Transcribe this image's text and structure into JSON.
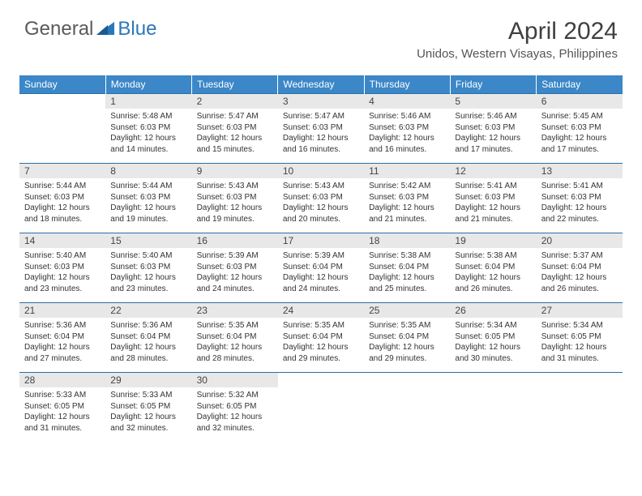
{
  "logo": {
    "text_general": "General",
    "text_blue": "Blue",
    "accent_color": "#2a77bb",
    "text_color": "#5a5a5a"
  },
  "title": "April 2024",
  "location": "Unidos, Western Visayas, Philippines",
  "colors": {
    "header_bg": "#3b87c8",
    "header_text": "#ffffff",
    "day_border": "#2a6ea8",
    "daynum_bg": "#e8e8e8",
    "body_text": "#333333",
    "background": "#ffffff"
  },
  "day_headers": [
    "Sunday",
    "Monday",
    "Tuesday",
    "Wednesday",
    "Thursday",
    "Friday",
    "Saturday"
  ],
  "weeks": [
    [
      {
        "n": "",
        "sr": "",
        "ss": "",
        "dl": "",
        "empty": true
      },
      {
        "n": "1",
        "sr": "Sunrise: 5:48 AM",
        "ss": "Sunset: 6:03 PM",
        "dl": "Daylight: 12 hours and 14 minutes."
      },
      {
        "n": "2",
        "sr": "Sunrise: 5:47 AM",
        "ss": "Sunset: 6:03 PM",
        "dl": "Daylight: 12 hours and 15 minutes."
      },
      {
        "n": "3",
        "sr": "Sunrise: 5:47 AM",
        "ss": "Sunset: 6:03 PM",
        "dl": "Daylight: 12 hours and 16 minutes."
      },
      {
        "n": "4",
        "sr": "Sunrise: 5:46 AM",
        "ss": "Sunset: 6:03 PM",
        "dl": "Daylight: 12 hours and 16 minutes."
      },
      {
        "n": "5",
        "sr": "Sunrise: 5:46 AM",
        "ss": "Sunset: 6:03 PM",
        "dl": "Daylight: 12 hours and 17 minutes."
      },
      {
        "n": "6",
        "sr": "Sunrise: 5:45 AM",
        "ss": "Sunset: 6:03 PM",
        "dl": "Daylight: 12 hours and 17 minutes."
      }
    ],
    [
      {
        "n": "7",
        "sr": "Sunrise: 5:44 AM",
        "ss": "Sunset: 6:03 PM",
        "dl": "Daylight: 12 hours and 18 minutes."
      },
      {
        "n": "8",
        "sr": "Sunrise: 5:44 AM",
        "ss": "Sunset: 6:03 PM",
        "dl": "Daylight: 12 hours and 19 minutes."
      },
      {
        "n": "9",
        "sr": "Sunrise: 5:43 AM",
        "ss": "Sunset: 6:03 PM",
        "dl": "Daylight: 12 hours and 19 minutes."
      },
      {
        "n": "10",
        "sr": "Sunrise: 5:43 AM",
        "ss": "Sunset: 6:03 PM",
        "dl": "Daylight: 12 hours and 20 minutes."
      },
      {
        "n": "11",
        "sr": "Sunrise: 5:42 AM",
        "ss": "Sunset: 6:03 PM",
        "dl": "Daylight: 12 hours and 21 minutes."
      },
      {
        "n": "12",
        "sr": "Sunrise: 5:41 AM",
        "ss": "Sunset: 6:03 PM",
        "dl": "Daylight: 12 hours and 21 minutes."
      },
      {
        "n": "13",
        "sr": "Sunrise: 5:41 AM",
        "ss": "Sunset: 6:03 PM",
        "dl": "Daylight: 12 hours and 22 minutes."
      }
    ],
    [
      {
        "n": "14",
        "sr": "Sunrise: 5:40 AM",
        "ss": "Sunset: 6:03 PM",
        "dl": "Daylight: 12 hours and 23 minutes."
      },
      {
        "n": "15",
        "sr": "Sunrise: 5:40 AM",
        "ss": "Sunset: 6:03 PM",
        "dl": "Daylight: 12 hours and 23 minutes."
      },
      {
        "n": "16",
        "sr": "Sunrise: 5:39 AM",
        "ss": "Sunset: 6:03 PM",
        "dl": "Daylight: 12 hours and 24 minutes."
      },
      {
        "n": "17",
        "sr": "Sunrise: 5:39 AM",
        "ss": "Sunset: 6:04 PM",
        "dl": "Daylight: 12 hours and 24 minutes."
      },
      {
        "n": "18",
        "sr": "Sunrise: 5:38 AM",
        "ss": "Sunset: 6:04 PM",
        "dl": "Daylight: 12 hours and 25 minutes."
      },
      {
        "n": "19",
        "sr": "Sunrise: 5:38 AM",
        "ss": "Sunset: 6:04 PM",
        "dl": "Daylight: 12 hours and 26 minutes."
      },
      {
        "n": "20",
        "sr": "Sunrise: 5:37 AM",
        "ss": "Sunset: 6:04 PM",
        "dl": "Daylight: 12 hours and 26 minutes."
      }
    ],
    [
      {
        "n": "21",
        "sr": "Sunrise: 5:36 AM",
        "ss": "Sunset: 6:04 PM",
        "dl": "Daylight: 12 hours and 27 minutes."
      },
      {
        "n": "22",
        "sr": "Sunrise: 5:36 AM",
        "ss": "Sunset: 6:04 PM",
        "dl": "Daylight: 12 hours and 28 minutes."
      },
      {
        "n": "23",
        "sr": "Sunrise: 5:35 AM",
        "ss": "Sunset: 6:04 PM",
        "dl": "Daylight: 12 hours and 28 minutes."
      },
      {
        "n": "24",
        "sr": "Sunrise: 5:35 AM",
        "ss": "Sunset: 6:04 PM",
        "dl": "Daylight: 12 hours and 29 minutes."
      },
      {
        "n": "25",
        "sr": "Sunrise: 5:35 AM",
        "ss": "Sunset: 6:04 PM",
        "dl": "Daylight: 12 hours and 29 minutes."
      },
      {
        "n": "26",
        "sr": "Sunrise: 5:34 AM",
        "ss": "Sunset: 6:05 PM",
        "dl": "Daylight: 12 hours and 30 minutes."
      },
      {
        "n": "27",
        "sr": "Sunrise: 5:34 AM",
        "ss": "Sunset: 6:05 PM",
        "dl": "Daylight: 12 hours and 31 minutes."
      }
    ],
    [
      {
        "n": "28",
        "sr": "Sunrise: 5:33 AM",
        "ss": "Sunset: 6:05 PM",
        "dl": "Daylight: 12 hours and 31 minutes."
      },
      {
        "n": "29",
        "sr": "Sunrise: 5:33 AM",
        "ss": "Sunset: 6:05 PM",
        "dl": "Daylight: 12 hours and 32 minutes."
      },
      {
        "n": "30",
        "sr": "Sunrise: 5:32 AM",
        "ss": "Sunset: 6:05 PM",
        "dl": "Daylight: 12 hours and 32 minutes."
      },
      {
        "n": "",
        "sr": "",
        "ss": "",
        "dl": "",
        "empty": true
      },
      {
        "n": "",
        "sr": "",
        "ss": "",
        "dl": "",
        "empty": true
      },
      {
        "n": "",
        "sr": "",
        "ss": "",
        "dl": "",
        "empty": true
      },
      {
        "n": "",
        "sr": "",
        "ss": "",
        "dl": "",
        "empty": true
      }
    ]
  ]
}
